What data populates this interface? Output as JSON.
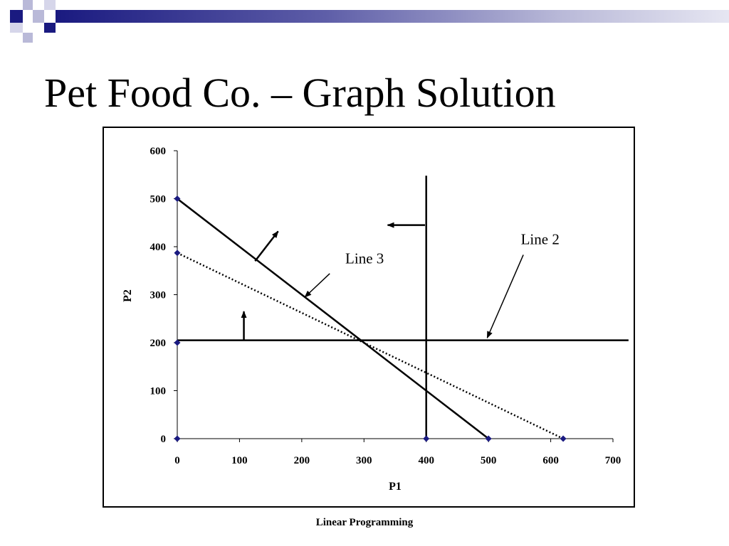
{
  "slide": {
    "title": "Pet Food Co. – Graph Solution",
    "footer": "Linear Programming"
  },
  "colors": {
    "deco_dark": "#1a1a80",
    "deco_mid": "#5e5ea8",
    "deco_light": "#b9b9d8",
    "marker": "#1a1a80",
    "line": "#000000"
  },
  "chart_data": {
    "type": "line",
    "xlabel": "P1",
    "ylabel": "P2",
    "xlim": [
      0,
      700
    ],
    "ylim": [
      0,
      600
    ],
    "x_ticks": [
      0,
      100,
      200,
      300,
      400,
      500,
      600,
      700
    ],
    "y_ticks": [
      0,
      100,
      200,
      300,
      400,
      500,
      600
    ],
    "grid": false,
    "legend": "none",
    "series": [
      {
        "style": "solid",
        "points": [
          [
            0,
            500
          ],
          [
            500,
            0
          ]
        ]
      },
      {
        "style": "dotted",
        "points": [
          [
            0,
            387
          ],
          [
            620,
            0
          ]
        ]
      },
      {
        "style": "solid",
        "points": [
          [
            0,
            205
          ],
          [
            725,
            205
          ]
        ]
      },
      {
        "style": "solid",
        "points": [
          [
            400,
            0
          ],
          [
            400,
            548
          ]
        ]
      }
    ],
    "markers": [
      [
        0,
        500
      ],
      [
        0,
        387
      ],
      [
        0,
        200
      ],
      [
        0,
        0
      ],
      [
        400,
        0
      ],
      [
        500,
        0
      ],
      [
        620,
        0
      ]
    ],
    "direction_arrows": [
      {
        "from": [
          125,
          370
        ],
        "to": [
          162,
          432
        ]
      },
      {
        "from": [
          107,
          205
        ],
        "to": [
          107,
          265
        ]
      },
      {
        "from": [
          398,
          445
        ],
        "to": [
          338,
          445
        ]
      }
    ],
    "annotations": [
      {
        "text": "Line 3",
        "label_at": [
          270,
          365
        ],
        "pointer_from": [
          245,
          344
        ],
        "pointer_to": [
          205,
          295
        ]
      },
      {
        "text": "Line 2",
        "label_at": [
          552,
          405
        ],
        "pointer_from": [
          556,
          383
        ],
        "pointer_to": [
          498,
          210
        ]
      }
    ]
  }
}
